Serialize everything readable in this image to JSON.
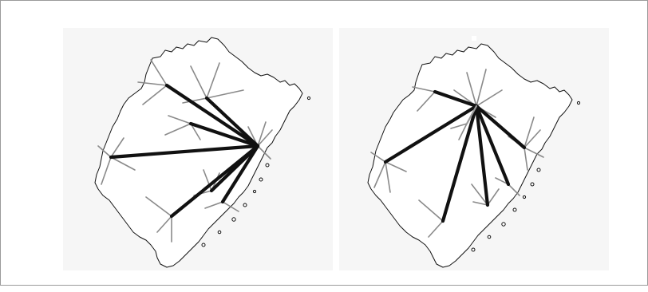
{
  "figure": {
    "panels": [
      {
        "id": "left",
        "hub": "coastal-hub"
      },
      {
        "id": "right",
        "hub": "inland-hub"
      }
    ],
    "colors": {
      "background": "#ffffff",
      "panel": "#f6f6f6",
      "outline": "#111111",
      "strong_link": "#111111",
      "weak_link": "#8a8a8a"
    }
  }
}
